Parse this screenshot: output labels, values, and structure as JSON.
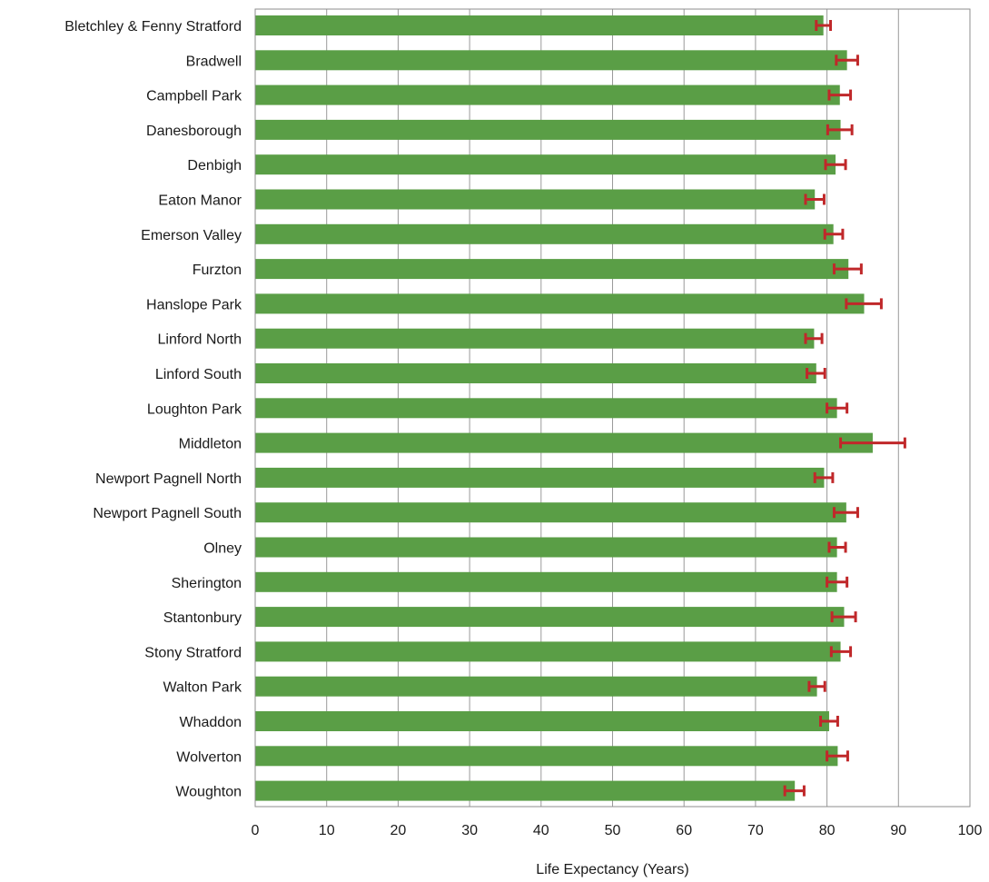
{
  "chart_data": {
    "type": "bar",
    "orientation": "horizontal",
    "xlabel": "Life Expectancy (Years)",
    "ylabel": "",
    "xlim": [
      0,
      100
    ],
    "xticks": [
      0,
      10,
      20,
      30,
      40,
      50,
      60,
      70,
      80,
      90,
      100
    ],
    "grid": "vertical gridlines every 10",
    "legend": "none",
    "colors": {
      "bar": "#5a9e46",
      "error_bar": "#c0282a",
      "grid": "#9a9a9a",
      "frame": "#8c8c8c"
    },
    "categories": [
      "Bletchley & Fenny Stratford",
      "Bradwell",
      "Campbell Park",
      "Danesborough",
      "Denbigh",
      "Eaton Manor",
      "Emerson Valley",
      "Furzton",
      "Hanslope Park",
      "Linford North",
      "Linford South",
      "Loughton Park",
      "Middleton",
      "Newport Pagnell North",
      "Newport Pagnell South",
      "Olney",
      "Sherington",
      "Stantonbury",
      "Stony Stratford",
      "Walton Park",
      "Whaddon",
      "Wolverton",
      "Woughton"
    ],
    "series": [
      {
        "values": [
          79.5,
          82.8,
          81.8,
          81.9,
          81.2,
          78.3,
          80.9,
          83.0,
          85.2,
          78.2,
          78.5,
          81.4,
          86.4,
          79.6,
          82.7,
          81.4,
          81.4,
          82.4,
          81.9,
          78.6,
          80.3,
          81.5,
          75.5
        ],
        "err_low": [
          78.5,
          81.3,
          80.3,
          80.1,
          79.8,
          77.0,
          79.7,
          81.0,
          82.7,
          77.0,
          77.2,
          80.0,
          81.9,
          78.3,
          81.0,
          80.3,
          80.0,
          80.7,
          80.6,
          77.5,
          79.1,
          80.0,
          74.1
        ],
        "err_high": [
          80.5,
          84.3,
          83.3,
          83.5,
          82.6,
          79.6,
          82.2,
          84.8,
          87.6,
          79.3,
          79.7,
          82.8,
          90.9,
          80.8,
          84.3,
          82.6,
          82.8,
          84.0,
          83.3,
          79.7,
          81.5,
          82.9,
          76.8
        ]
      }
    ]
  }
}
